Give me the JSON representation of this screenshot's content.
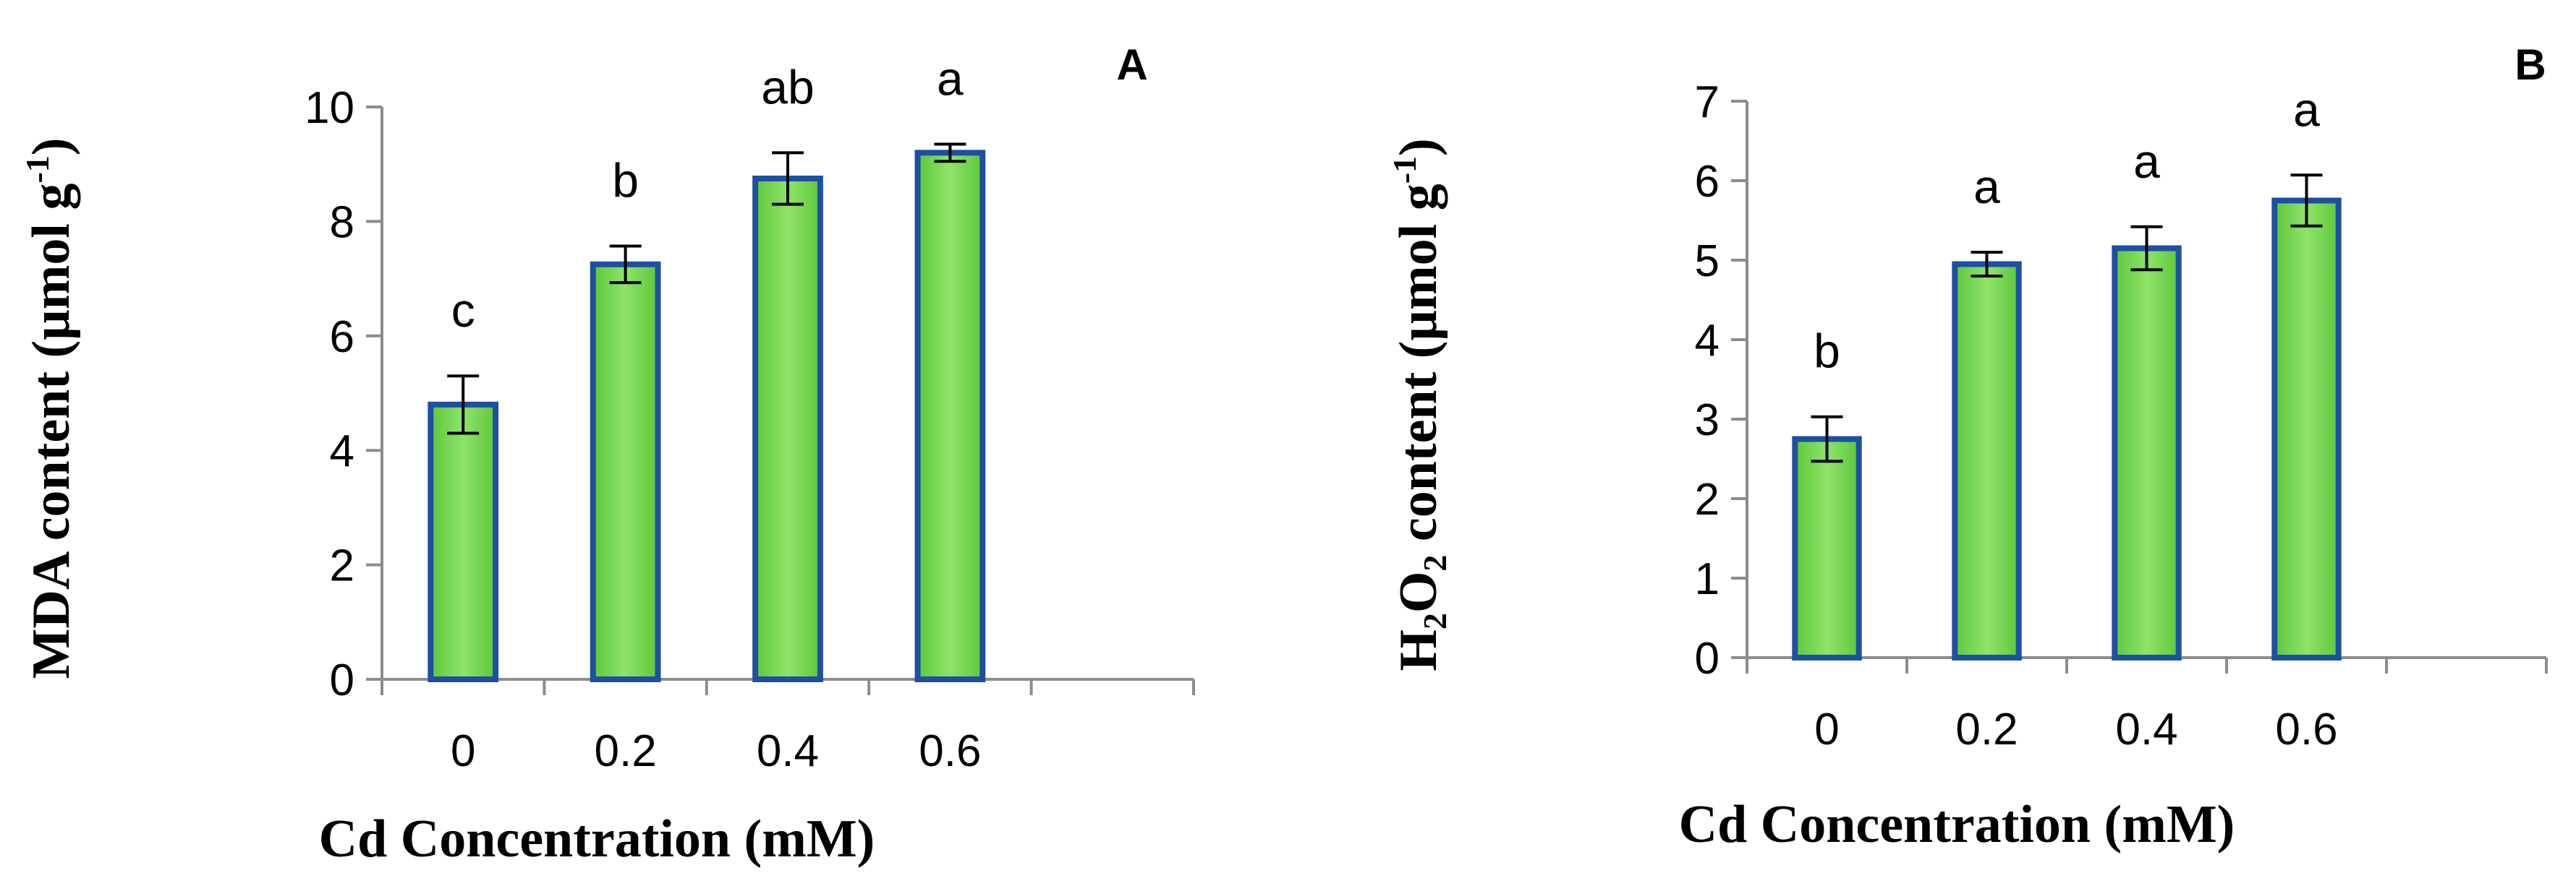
{
  "chart_data": [
    {
      "type": "bar",
      "panel_label": "A",
      "categories": [
        "0",
        "0.2",
        "0.4",
        "0.6"
      ],
      "values": [
        4.8,
        7.25,
        8.75,
        9.2
      ],
      "errors": [
        0.5,
        0.32,
        0.45,
        0.15
      ],
      "significance": [
        "c",
        "b",
        "ab",
        "a"
      ],
      "xlabel": "Cd Concentration  (mM)",
      "ylabel": {
        "main": "MDA content (µmol g",
        "sup": "-1",
        "close": ")"
      },
      "ylim": [
        0,
        10
      ],
      "yticks": [
        0,
        2,
        4,
        6,
        8,
        10
      ],
      "extra_empty_slots": 1,
      "bar_fill": "#7ed957",
      "bar_edge": "#1f4fa3"
    },
    {
      "type": "bar",
      "panel_label": "B",
      "categories": [
        "0",
        "0.2",
        "0.4",
        "0.6"
      ],
      "values": [
        2.75,
        4.95,
        5.15,
        5.75
      ],
      "errors": [
        0.28,
        0.15,
        0.27,
        0.32
      ],
      "significance": [
        "b",
        "a",
        "a",
        "a"
      ],
      "xlabel": "Cd Concentration  (mM)",
      "ylabel": {
        "p1": "H",
        "s1": "2",
        "p2": "O",
        "s2": "2",
        "p3": " content (µmol g",
        "sup": "-1",
        "close": ")"
      },
      "ylim": [
        0,
        7
      ],
      "yticks": [
        0,
        1,
        2,
        3,
        4,
        5,
        6,
        7
      ],
      "extra_empty_slots": 1,
      "bar_fill": "#7ed957",
      "bar_edge": "#1f4fa3"
    }
  ]
}
